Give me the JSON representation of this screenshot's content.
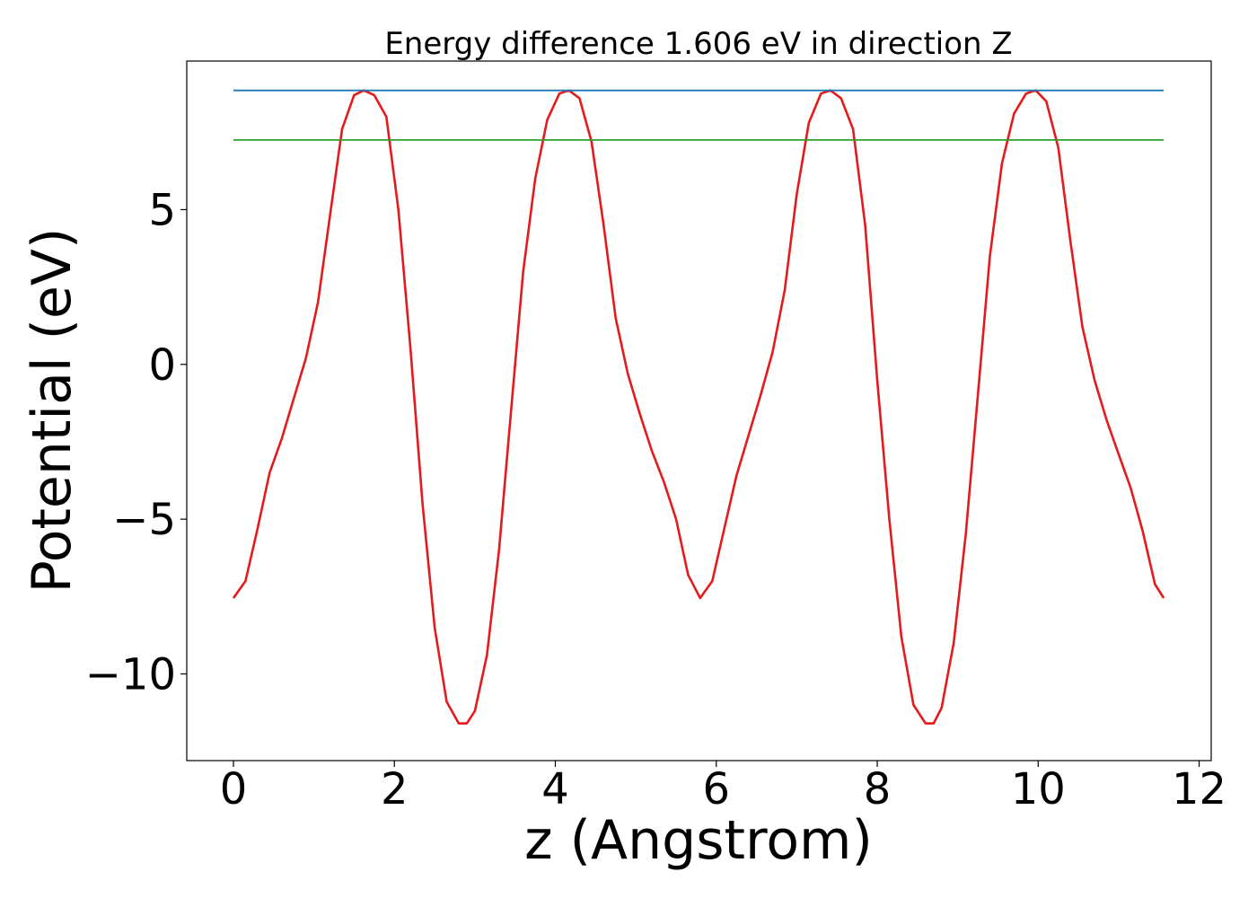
{
  "chart_data": {
    "type": "line",
    "title": "Energy difference 1.606 eV in direction Z",
    "xlabel": "z (Angstrom)",
    "ylabel": "Potential (eV)",
    "xlim": [
      -0.58,
      12.15
    ],
    "ylim": [
      -12.8,
      9.8
    ],
    "x_ticks": [
      0,
      2,
      4,
      6,
      8,
      10,
      12
    ],
    "x_tick_labels": [
      "0",
      "2",
      "4",
      "6",
      "8",
      "10",
      "12"
    ],
    "y_ticks": [
      5,
      0,
      -5,
      -10
    ],
    "y_tick_labels": [
      "5",
      "0",
      "−5",
      "−10"
    ],
    "grid": false,
    "legend": "none",
    "series": [
      {
        "color": "#e41a1c",
        "x": [
          0.0,
          0.15,
          0.3,
          0.45,
          0.6,
          0.75,
          0.9,
          1.05,
          1.2,
          1.35,
          1.5,
          1.62,
          1.75,
          1.9,
          2.05,
          2.2,
          2.35,
          2.5,
          2.65,
          2.8,
          2.9,
          3.0,
          3.15,
          3.3,
          3.45,
          3.6,
          3.75,
          3.9,
          4.05,
          4.17,
          4.3,
          4.45,
          4.6,
          4.75,
          4.9,
          5.05,
          5.2,
          5.35,
          5.5,
          5.65,
          5.8,
          5.95,
          6.1,
          6.25,
          6.4,
          6.55,
          6.7,
          6.85,
          7.0,
          7.15,
          7.3,
          7.42,
          7.55,
          7.7,
          7.85,
          8.0,
          8.15,
          8.3,
          8.45,
          8.6,
          8.7,
          8.8,
          8.95,
          9.1,
          9.25,
          9.4,
          9.55,
          9.7,
          9.85,
          9.97,
          10.1,
          10.25,
          10.4,
          10.55,
          10.7,
          10.85,
          11.0,
          11.15,
          11.3,
          11.45,
          11.56
        ],
        "values": [
          -7.55,
          -7.0,
          -5.3,
          -3.5,
          -2.4,
          -1.1,
          0.2,
          2.0,
          4.8,
          7.6,
          8.7,
          8.85,
          8.7,
          8.0,
          5.0,
          0.5,
          -4.5,
          -8.5,
          -10.9,
          -11.6,
          -11.6,
          -11.2,
          -9.4,
          -6.0,
          -1.5,
          3.0,
          6.0,
          7.9,
          8.75,
          8.85,
          8.6,
          7.2,
          4.5,
          1.5,
          -0.3,
          -1.6,
          -2.8,
          -3.8,
          -5.0,
          -6.8,
          -7.55,
          -7.0,
          -5.3,
          -3.6,
          -2.3,
          -1.0,
          0.4,
          2.4,
          5.5,
          7.8,
          8.75,
          8.85,
          8.6,
          7.6,
          4.5,
          -0.5,
          -5.0,
          -8.8,
          -11.0,
          -11.6,
          -11.6,
          -11.1,
          -9.0,
          -5.5,
          -1.0,
          3.5,
          6.5,
          8.1,
          8.75,
          8.85,
          8.5,
          7.0,
          4.0,
          1.2,
          -0.5,
          -1.8,
          -2.9,
          -4.0,
          -5.4,
          -7.1,
          -7.55
        ]
      },
      {
        "color": "#1f77b4",
        "x": [
          0.0,
          11.56
        ],
        "values": [
          8.85,
          8.85
        ]
      },
      {
        "color": "#2ca02c",
        "x": [
          0.0,
          11.56
        ],
        "values": [
          7.25,
          7.25
        ]
      }
    ]
  }
}
